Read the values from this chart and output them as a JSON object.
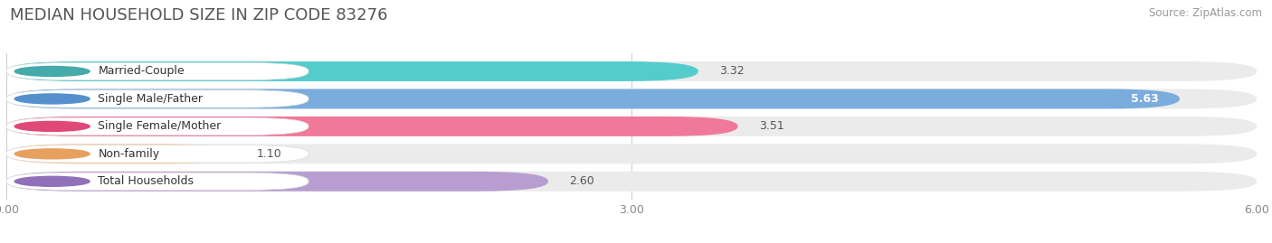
{
  "title": "MEDIAN HOUSEHOLD SIZE IN ZIP CODE 83276",
  "source": "Source: ZipAtlas.com",
  "categories": [
    "Married-Couple",
    "Single Male/Father",
    "Single Female/Mother",
    "Non-family",
    "Total Households"
  ],
  "values": [
    3.32,
    5.63,
    3.51,
    1.1,
    2.6
  ],
  "bar_colors": [
    "#55cccc",
    "#7aacdc",
    "#f07898",
    "#f5c898",
    "#b89ed0"
  ],
  "dot_colors": [
    "#44aaaa",
    "#5590cc",
    "#e04878",
    "#e8a060",
    "#9070b8"
  ],
  "label_text_colors": [
    "#444444",
    "#444444",
    "#444444",
    "#444444",
    "#444444"
  ],
  "value_inside": [
    false,
    true,
    false,
    false,
    false
  ],
  "xlim": [
    0,
    6.0
  ],
  "xticks": [
    0.0,
    3.0,
    6.0
  ],
  "xtick_labels": [
    "0.00",
    "3.00",
    "6.00"
  ],
  "background_color": "#ffffff",
  "row_bg_color": "#ebebeb",
  "title_fontsize": 13,
  "tick_fontsize": 9,
  "label_fontsize": 9,
  "value_fontsize": 9
}
